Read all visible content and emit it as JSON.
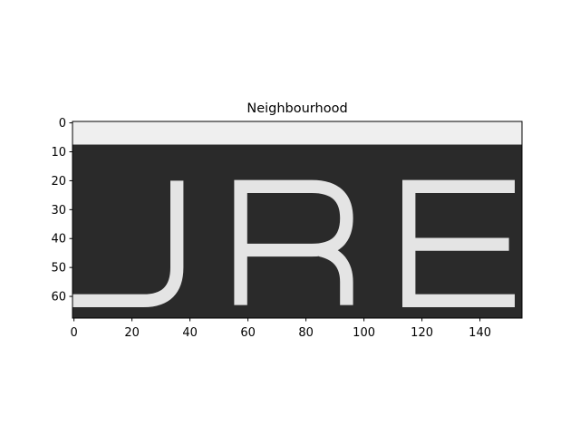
{
  "chart_data": {
    "type": "image",
    "title": "Neighbourhood",
    "xlim": [
      -0.5,
      154.5
    ],
    "ylim": [
      67.5,
      -0.5
    ],
    "xticks": [
      0,
      20,
      40,
      60,
      80,
      100,
      120,
      140
    ],
    "yticks": [
      0,
      10,
      20,
      30,
      40,
      50,
      60
    ]
  }
}
